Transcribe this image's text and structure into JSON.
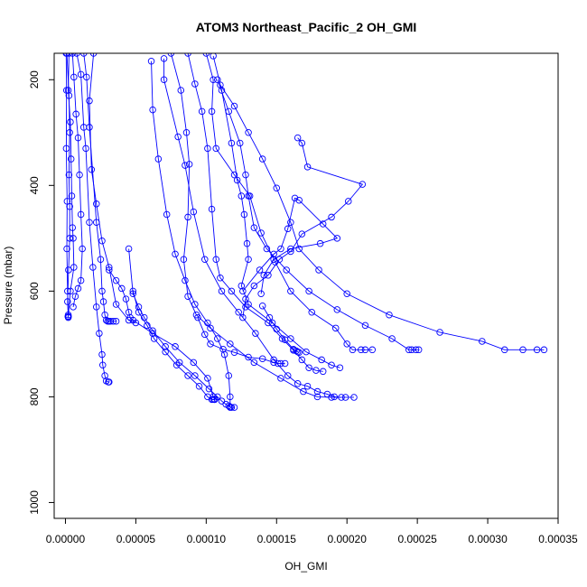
{
  "chart_data": {
    "type": "line",
    "title": "ATOM3 Northeast_Pacific_2 OH_GMI",
    "xlabel": "OH_GMI",
    "ylabel": "Pressure (mbar)",
    "xlim": [
      -8e-06,
      0.00035
    ],
    "ylim": [
      1030,
      150
    ],
    "y_reversed": true,
    "x_ticks": [
      0.0,
      5e-05,
      0.0001,
      0.00015,
      0.0002,
      0.00025,
      0.0003,
      0.00035
    ],
    "x_tick_labels": [
      "0.00000",
      "0.00005",
      "0.00010",
      "0.00015",
      "0.00020",
      "0.00025",
      "0.00030",
      "0.00035"
    ],
    "y_ticks": [
      200,
      400,
      600,
      800,
      1000
    ],
    "y_tick_labels": [
      "200",
      "400",
      "600",
      "800",
      "1000"
    ],
    "color": "#0000ff",
    "marker": "open-circle",
    "grid": false,
    "series": [
      {
        "x": [
          5e-07,
          8e-07,
          6e-07,
          1.2e-06,
          1e-06,
          1.5e-06,
          2e-06,
          1.8e-06,
          2e-06
        ],
        "y": [
          150,
          220,
          330,
          430,
          520,
          600,
          645,
          648,
          650
        ]
      },
      {
        "x": [
          1e-06,
          2.5e-06,
          3e-06,
          2.5e-06,
          3e-06,
          3e-06,
          2.2e-06,
          1.5e-06,
          2e-06
        ],
        "y": [
          150,
          230,
          300,
          380,
          440,
          500,
          560,
          620,
          648
        ]
      },
      {
        "x": [
          2.5e-06,
          2e-06,
          3.5e-06,
          4e-06,
          4.5e-06,
          5e-06,
          5.5e-06,
          6e-06,
          3.5e-06,
          2e-06
        ],
        "y": [
          150,
          220,
          280,
          350,
          420,
          480,
          500,
          555,
          600,
          648
        ]
      },
      {
        "x": [
          5e-06,
          6e-06,
          7.5e-06,
          9e-06,
          1e-05,
          1.1e-05,
          1.2e-05,
          1.1e-05,
          9e-06,
          7e-06,
          5.5e-06
        ],
        "y": [
          150,
          195,
          265,
          310,
          380,
          455,
          520,
          580,
          595,
          610,
          630
        ]
      },
      {
        "x": [
          8e-06,
          1.1e-05,
          1.3e-05,
          1.45e-05,
          1.7e-05,
          1.95e-05,
          2.2e-05,
          2.4e-05,
          2.6e-05,
          2.65e-05,
          2.8e-05,
          2.9e-05,
          3.05e-05,
          3.1e-05
        ],
        "y": [
          150,
          190,
          290,
          330,
          470,
          555,
          630,
          680,
          720,
          740,
          760,
          770,
          772,
          772
        ]
      },
      {
        "x": [
          2e-05,
          1.7e-05,
          1.85e-05,
          2.2e-05,
          2.6e-05,
          3.1e-05,
          3.6e-05,
          4.5e-05,
          5e-05
        ],
        "y": [
          150,
          240,
          370,
          435,
          505,
          555,
          625,
          655,
          660
        ]
      },
      {
        "x": [
          1.3e-05,
          1.5e-05,
          1.7e-05,
          2.2e-05,
          2.5e-05,
          2.6e-05,
          2.7e-05,
          2.8e-05,
          2.9e-05,
          3e-05,
          3.1e-05,
          3.2e-05,
          3.4e-05,
          3.6e-05
        ],
        "y": [
          150,
          195,
          290,
          470,
          540,
          600,
          620,
          645,
          655,
          657,
          657,
          657,
          657,
          657
        ]
      },
      {
        "x": [
          4.5e-05,
          4.8e-05,
          5.2e-05,
          5.6e-05,
          6.2e-05,
          7.1e-05,
          8.1e-05,
          9.2e-05,
          0.000102,
          0.000108,
          0.000111,
          0.000114,
          0.000116,
          0.000117,
          0.000118,
          0.00012
        ],
        "y": [
          520,
          605,
          630,
          650,
          675,
          705,
          735,
          760,
          785,
          800,
          808,
          814,
          817,
          819,
          820,
          820
        ]
      },
      {
        "x": [
          4.8e-05,
          5.2e-05,
          5.8e-05,
          6.3e-05,
          7.1e-05,
          7.9e-05,
          8.7e-05,
          9.5e-05,
          0.000101,
          0.000104,
          0.000105,
          0.000106
        ],
        "y": [
          600,
          640,
          665,
          690,
          715,
          740,
          760,
          780,
          800,
          805,
          805,
          805
        ]
      },
      {
        "x": [
          3.1e-05,
          3.6e-05,
          4e-05,
          4.3e-05,
          4.5e-05,
          4.6e-05,
          4.8e-05,
          6.2e-05,
          7.8e-05,
          9.1e-05,
          0.000101,
          0.000105,
          0.000106,
          0.000106
        ],
        "y": [
          560,
          580,
          595,
          615,
          640,
          650,
          655,
          680,
          705,
          735,
          765,
          800,
          805,
          805
        ]
      },
      {
        "x": [
          6.1e-05,
          6.2e-05,
          6.6e-05,
          7.2e-05,
          7.8e-05,
          8.5e-05,
          9.2e-05,
          0.000101,
          0.000108,
          0.000113,
          0.000116,
          0.000117,
          0.000117
        ],
        "y": [
          165,
          257,
          350,
          455,
          530,
          580,
          625,
          660,
          690,
          720,
          760,
          800,
          820
        ]
      },
      {
        "x": [
          7e-05,
          7e-05,
          8e-05,
          8.5e-05,
          9.1e-05,
          9.9e-05,
          0.000111,
          0.000123,
          0.000135,
          0.000148,
          0.000158,
          0.000165,
          0.000172,
          0.000179,
          0.000186,
          0.000191,
          0.000196
        ],
        "y": [
          160,
          200,
          308,
          362,
          450,
          540,
          600,
          640,
          680,
          730,
          760,
          775,
          780,
          790,
          795,
          800,
          801
        ]
      },
      {
        "x": [
          7.5e-05,
          8.2e-05,
          8.6e-05,
          8.8e-05,
          8.7e-05,
          8.4e-05,
          8.7e-05,
          9.3e-05,
          0.000103,
          0.000117,
          0.000134,
          0.000153,
          0.000169,
          0.000179,
          0.000189,
          0.000199,
          0.000205
        ],
        "y": [
          150,
          220,
          300,
          360,
          460,
          540,
          610,
          645,
          670,
          700,
          735,
          765,
          790,
          800,
          801,
          801,
          801
        ]
      },
      {
        "x": [
          8.7e-05,
          9.2e-05,
          9.7e-05,
          0.000101,
          0.000104,
          0.000107,
          0.00011,
          0.000118,
          0.000128,
          0.000144,
          0.000154,
          0.000162,
          0.000168,
          0.000173,
          0.000178,
          0.000183
        ],
        "y": [
          150,
          208,
          260,
          330,
          445,
          540,
          575,
          600,
          630,
          660,
          690,
          712,
          730,
          745,
          750,
          752
        ]
      },
      {
        "x": [
          0.0001,
          0.000105,
          0.000104,
          0.000107,
          0.00012,
          0.000131,
          0.000139,
          0.000149,
          0.00016,
          0.000175,
          0.000192,
          0.0002,
          0.000204,
          0.00021,
          0.000213,
          0.000218
        ],
        "y": [
          150,
          200,
          260,
          330,
          380,
          420,
          490,
          545,
          600,
          640,
          670,
          700,
          711,
          711,
          711,
          711
        ]
      },
      {
        "x": [
          0.000105,
          0.000111,
          0.000118,
          0.000122,
          0.000125,
          0.000127,
          0.000129,
          0.00013,
          0.000125,
          0.00013,
          0.000147,
          0.00016,
          0.000171,
          0.000182,
          0.000189,
          0.000195
        ],
        "y": [
          155,
          220,
          320,
          390,
          420,
          455,
          510,
          540,
          590,
          625,
          660,
          690,
          715,
          730,
          740,
          745
        ]
      },
      {
        "x": [
          0.000108,
          0.000116,
          0.000124,
          0.000128,
          0.00013,
          0.000134,
          0.000143,
          0.000157,
          0.000173,
          0.000193,
          0.000213,
          0.000232,
          0.000244,
          0.000246,
          0.000249,
          0.000251
        ],
        "y": [
          200,
          260,
          320,
          380,
          420,
          480,
          520,
          560,
          600,
          635,
          665,
          690,
          711,
          711,
          711,
          711
        ]
      },
      {
        "x": [
          0.00011,
          0.00012,
          0.00013,
          0.00014,
          0.00015,
          0.00016,
          0.000166,
          0.00018,
          0.0002,
          0.00023,
          0.000266,
          0.000296,
          0.000312,
          0.000325,
          0.000335,
          0.00034
        ],
        "y": [
          210,
          250,
          300,
          350,
          405,
          470,
          520,
          560,
          605,
          645,
          678,
          695,
          711,
          711,
          711,
          711
        ]
      },
      {
        "x": [
          0.000165,
          0.000168,
          0.000172,
          0.000211,
          0.000201,
          0.000189,
          0.000168,
          0.00016,
          0.000152,
          0.000144,
          0.000134,
          0.000128,
          0.000126
        ],
        "y": [
          310,
          320,
          365,
          398,
          430,
          460,
          492,
          525,
          540,
          570,
          590,
          615,
          650
        ]
      },
      {
        "x": [
          0.000126,
          0.000138,
          0.000148,
          0.000153,
          0.000158,
          0.000163,
          0.000166,
          0.000183,
          0.000193,
          0.000181,
          0.00016,
          0.000148,
          0.000141,
          0.000139
        ],
        "y": [
          600,
          560,
          530,
          520,
          482,
          424,
          428,
          473,
          500,
          510,
          520,
          540,
          570,
          605
        ]
      },
      {
        "x": [
          0.00014,
          0.000145,
          0.00015,
          0.000156,
          0.000162,
          0.000164,
          0.000165,
          0.000166
        ],
        "y": [
          628,
          650,
          672,
          692,
          710,
          713,
          715,
          716
        ]
      },
      {
        "x": [
          9.4e-05,
          9.9e-05,
          0.000103,
          0.000112,
          0.00012,
          0.00013,
          0.00014,
          0.000148,
          0.000151,
          0.000153,
          0.000156
        ],
        "y": [
          650,
          682,
          700,
          710,
          716,
          725,
          728,
          735,
          737,
          737,
          737
        ]
      }
    ]
  }
}
